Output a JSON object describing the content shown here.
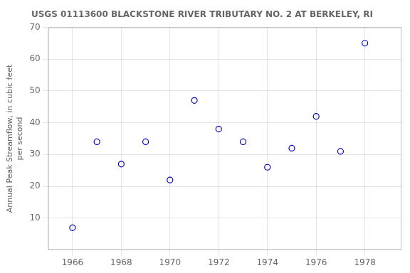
{
  "chart_data": {
    "type": "scatter",
    "title": "USGS 01113600 BLACKSTONE RIVER TRIBUTARY NO. 2 AT BERKELEY, RI",
    "ylabel": [
      "Annual Peak Streamflow, in cubic feet",
      "per second"
    ],
    "x": [
      1966,
      1967,
      1968,
      1969,
      1970,
      1971,
      1972,
      1973,
      1974,
      1975,
      1976,
      1977,
      1978
    ],
    "values": [
      7,
      34,
      27,
      34,
      22,
      47,
      38,
      34,
      26,
      32,
      42,
      31,
      65
    ],
    "color": "#0000BB",
    "marker": "circle",
    "xlim": [
      1965.0,
      1979.5
    ],
    "ylim": [
      0,
      70
    ],
    "xticks": [
      1966,
      1968,
      1970,
      1972,
      1974,
      1976,
      1978
    ],
    "yticks": [
      10,
      20,
      30,
      40,
      50,
      60,
      70
    ],
    "grid": true
  }
}
